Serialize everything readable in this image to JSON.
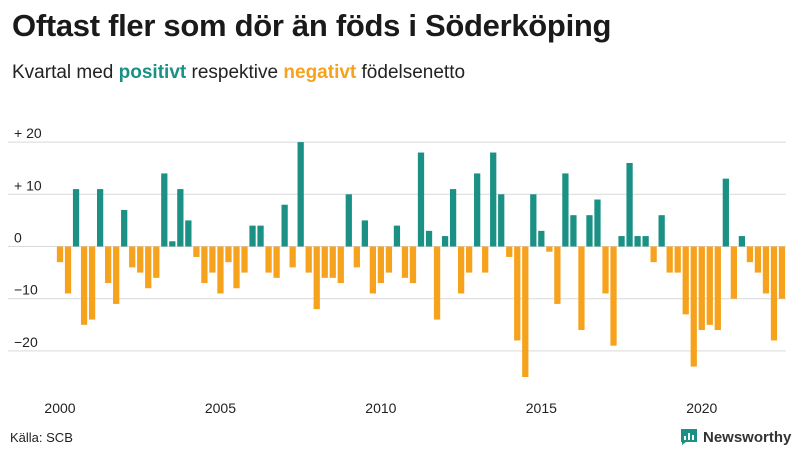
{
  "header": {
    "title": "Oftast fler som dör än föds i Söderköping",
    "subtitle_prefix": "Kvartal med",
    "subtitle_positive": "positivt",
    "subtitle_middle": "respektive",
    "subtitle_negative": "negativt",
    "subtitle_suffix": "födelsenetto"
  },
  "footer": {
    "source": "Källa: SCB",
    "brand": "Newsworthy",
    "brand_icon": "newsworthy-logo-icon"
  },
  "colors": {
    "positive": "#1a9184",
    "negative": "#f6a21c",
    "grid": "#d9d9d9",
    "brand": "#1a9184"
  },
  "chart_data": {
    "type": "bar",
    "title": "Oftast fler som dör än föds i Söderköping",
    "xlabel": "",
    "ylabel": "",
    "ylim": [
      -25,
      22
    ],
    "yticks": [
      -20,
      -10,
      0,
      10,
      20
    ],
    "ytick_labels": [
      "−20",
      "−10",
      "0",
      "+ 10",
      "+ 20"
    ],
    "xticks": [
      2000,
      2005,
      2010,
      2015,
      2020
    ],
    "xtick_labels": [
      "2000",
      "2005",
      "2010",
      "2015",
      "2020"
    ],
    "start_year": 2000,
    "quarters_per_year": 4,
    "grid": true,
    "legend": "in subtitle",
    "values": [
      -3,
      -9,
      11,
      -15,
      -14,
      11,
      -7,
      -11,
      7,
      -4,
      -5,
      -8,
      -6,
      14,
      1,
      11,
      5,
      -2,
      -7,
      -5,
      -9,
      -3,
      -8,
      -5,
      4,
      4,
      -5,
      -6,
      8,
      -4,
      20,
      -5,
      -12,
      -6,
      -6,
      -7,
      10,
      -4,
      5,
      -9,
      -7,
      -5,
      4,
      -6,
      -7,
      18,
      3,
      -14,
      2,
      11,
      -9,
      -5,
      14,
      -5,
      18,
      10,
      -2,
      -18,
      -25,
      10,
      3,
      -1,
      -11,
      14,
      6,
      -16,
      6,
      9,
      -9,
      -19,
      2,
      16,
      2,
      2,
      -3,
      6,
      -5,
      -5,
      -13,
      -23,
      -16,
      -15,
      -16,
      13,
      -10,
      2,
      -3,
      -5,
      -9,
      -18,
      -10
    ]
  }
}
